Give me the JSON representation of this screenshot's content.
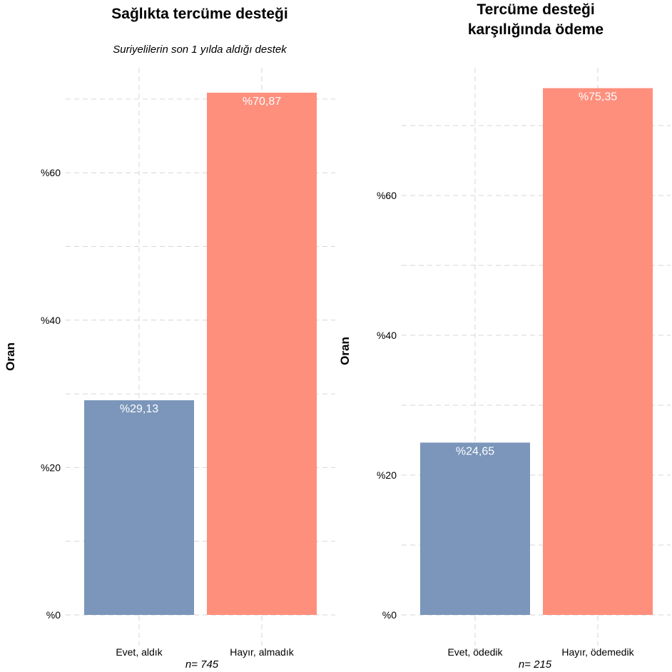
{
  "colors": {
    "yes": "#7b96ba",
    "no": "#ff8f7d",
    "grid": "#d6d6d6",
    "value_label": "#ffffff"
  },
  "chart_data": [
    {
      "type": "bar",
      "title": "Sağlıkta tercüme desteği",
      "subtitle": "Suriyelilerin son 1 yılda aldığı destek",
      "ylabel": "Oran",
      "xlabel": "",
      "categories": [
        "Evet, aldık",
        "Hayır, almadık"
      ],
      "values": [
        29.13,
        70.87
      ],
      "value_labels": [
        "%29,13",
        "%70,87"
      ],
      "yticks": [
        "%0",
        "%20",
        "%40",
        "%60"
      ],
      "ytick_values": [
        0,
        20,
        40,
        60
      ],
      "ylim": [
        0,
        72
      ],
      "grid": true,
      "note": "n=  745"
    },
    {
      "type": "bar",
      "title": "Tercüme desteği karşılığında ödeme",
      "subtitle": "",
      "ylabel": "Oran",
      "xlabel": "",
      "categories": [
        "Evet, ödedik",
        "Hayır, ödemedik"
      ],
      "values": [
        24.65,
        75.35
      ],
      "value_labels": [
        "%24,65",
        "%75,35"
      ],
      "yticks": [
        "%0",
        "%20",
        "%40",
        "%60"
      ],
      "ytick_values": [
        0,
        20,
        40,
        60
      ],
      "ylim": [
        0,
        77
      ],
      "grid": true,
      "note": "n=  215"
    }
  ]
}
